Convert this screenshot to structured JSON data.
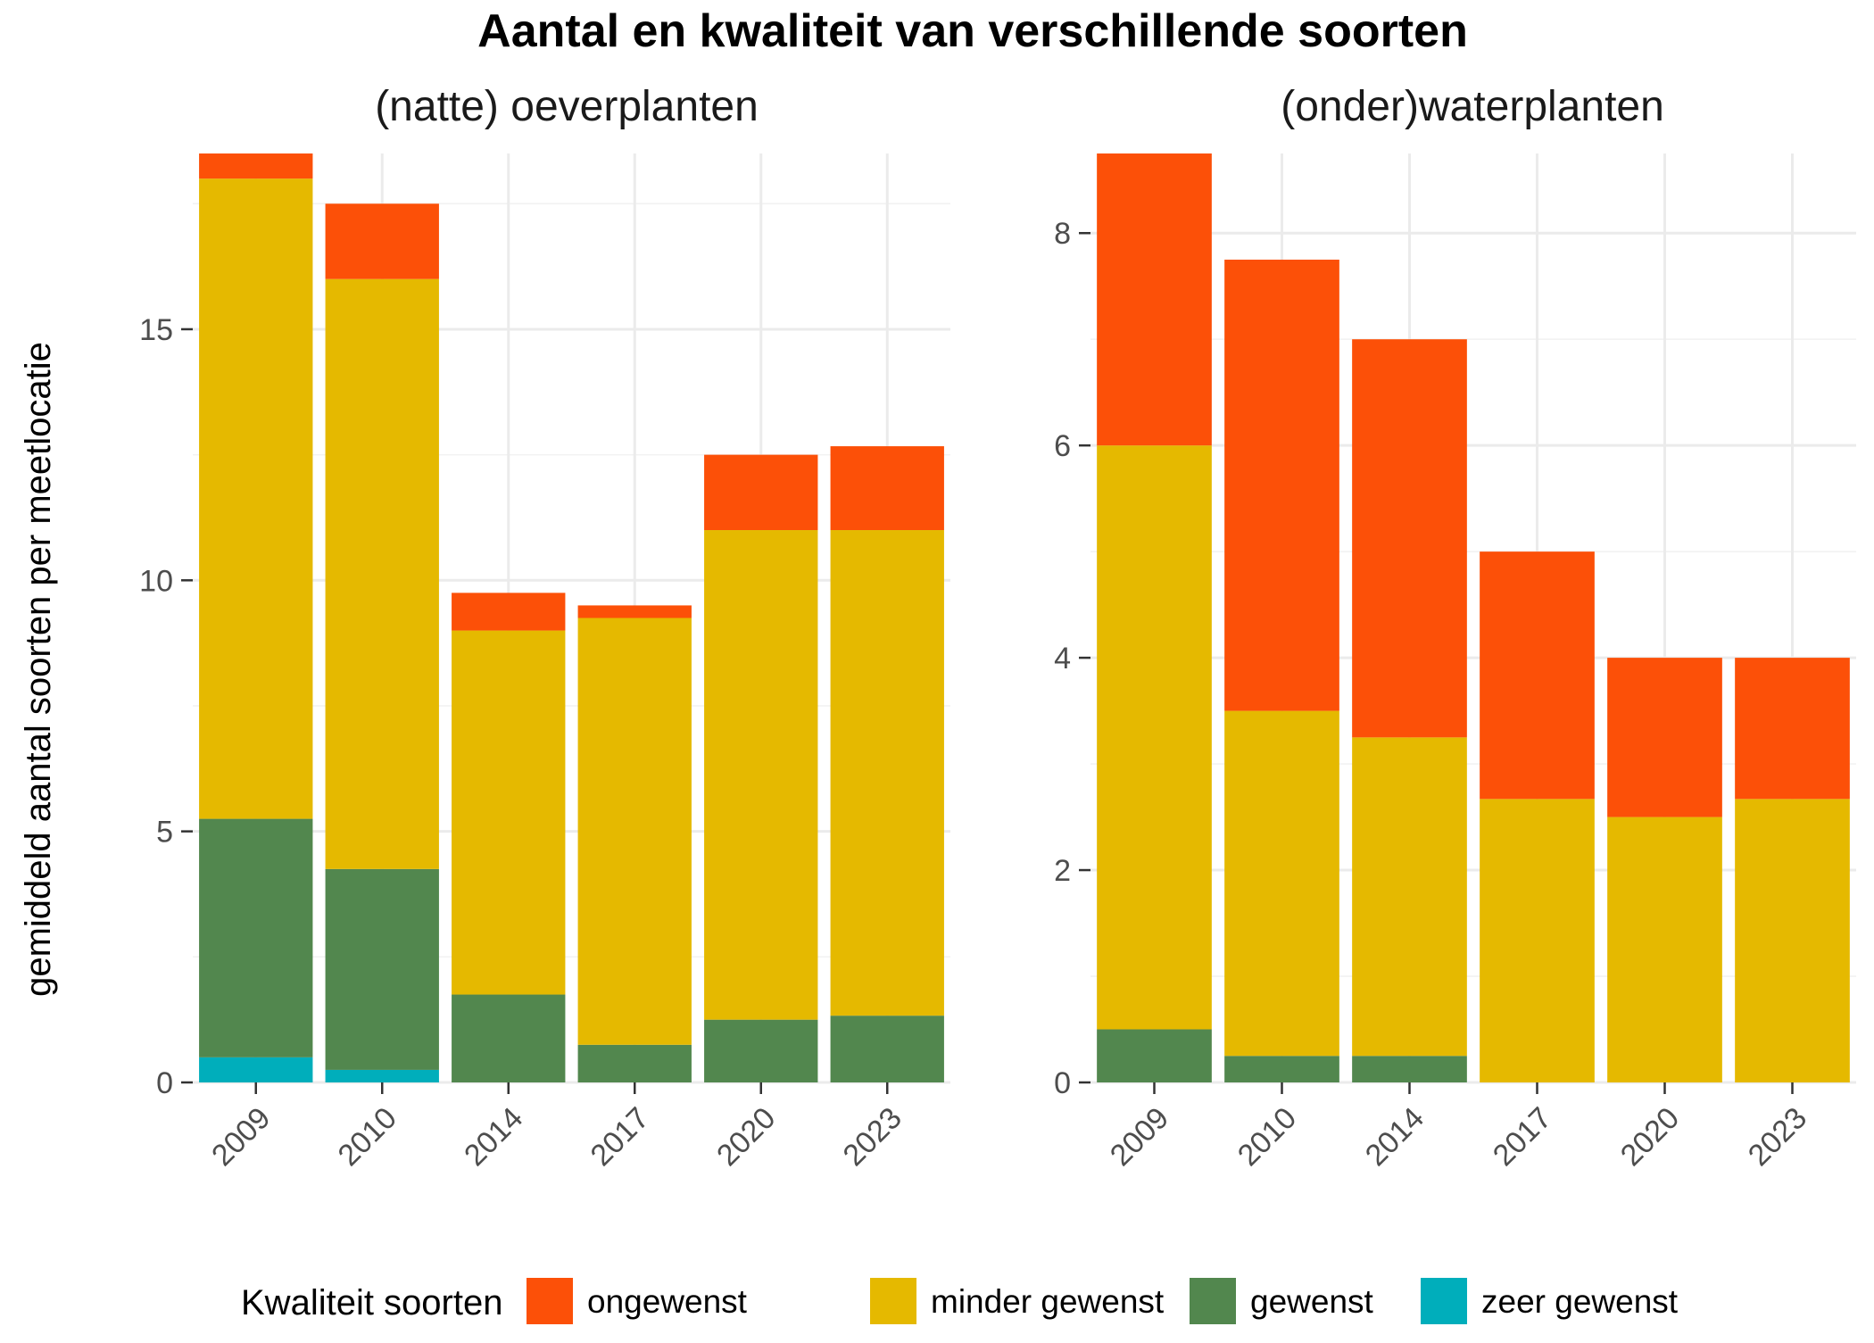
{
  "title": "Aantal en kwaliteit van verschillende soorten",
  "ylabel": "gemiddeld aantal soorten per meetlocatie",
  "legend": {
    "title": "Kwaliteit soorten",
    "placement": "bottom",
    "items": [
      {
        "label": "ongewenst",
        "color": "#FC5008"
      },
      {
        "label": "minder gewenst",
        "color": "#E5B900"
      },
      {
        "label": "gewenst",
        "color": "#52874E"
      },
      {
        "label": "zeer gewenst",
        "color": "#00AEBB"
      }
    ]
  },
  "chart_data": [
    {
      "type": "bar",
      "stacked": true,
      "title": "(natte) oeverplanten",
      "categories": [
        "2009",
        "2010",
        "2014",
        "2017",
        "2020",
        "2023"
      ],
      "ylabel": "gemiddeld aantal soorten per meetlocatie",
      "ylim": [
        0,
        18.5
      ],
      "yticks": [
        0,
        5,
        10,
        15
      ],
      "ytick_labels": [
        "0",
        "5",
        "10",
        "15"
      ],
      "grid": true,
      "series": [
        {
          "name": "zeer gewenst",
          "color": "#00AEBB",
          "values": [
            0.5,
            0.25,
            0,
            0,
            0,
            0
          ]
        },
        {
          "name": "gewenst",
          "color": "#52874E",
          "values": [
            4.75,
            4.0,
            1.75,
            0.75,
            1.25,
            1.33
          ]
        },
        {
          "name": "minder gewenst",
          "color": "#E5B900",
          "values": [
            12.75,
            11.75,
            7.25,
            8.5,
            9.75,
            9.67
          ]
        },
        {
          "name": "ongewenst",
          "color": "#FC5008",
          "values": [
            0.5,
            1.5,
            0.75,
            0.25,
            1.5,
            1.67
          ]
        }
      ]
    },
    {
      "type": "bar",
      "stacked": true,
      "title": "(onder)waterplanten",
      "categories": [
        "2009",
        "2010",
        "2014",
        "2017",
        "2020",
        "2023"
      ],
      "ylim": [
        0,
        8.75
      ],
      "yticks": [
        0,
        2,
        4,
        6,
        8
      ],
      "ytick_labels": [
        "0",
        "2",
        "4",
        "6",
        "8"
      ],
      "grid": true,
      "series": [
        {
          "name": "zeer gewenst",
          "color": "#00AEBB",
          "values": [
            0,
            0,
            0,
            0,
            0,
            0
          ]
        },
        {
          "name": "gewenst",
          "color": "#52874E",
          "values": [
            0.5,
            0.25,
            0.25,
            0,
            0,
            0
          ]
        },
        {
          "name": "minder gewenst",
          "color": "#E5B900",
          "values": [
            5.5,
            3.25,
            3.0,
            2.67,
            2.5,
            2.67
          ]
        },
        {
          "name": "ongewenst",
          "color": "#FC5008",
          "values": [
            2.75,
            4.25,
            3.75,
            2.33,
            1.5,
            1.33
          ]
        }
      ]
    }
  ]
}
